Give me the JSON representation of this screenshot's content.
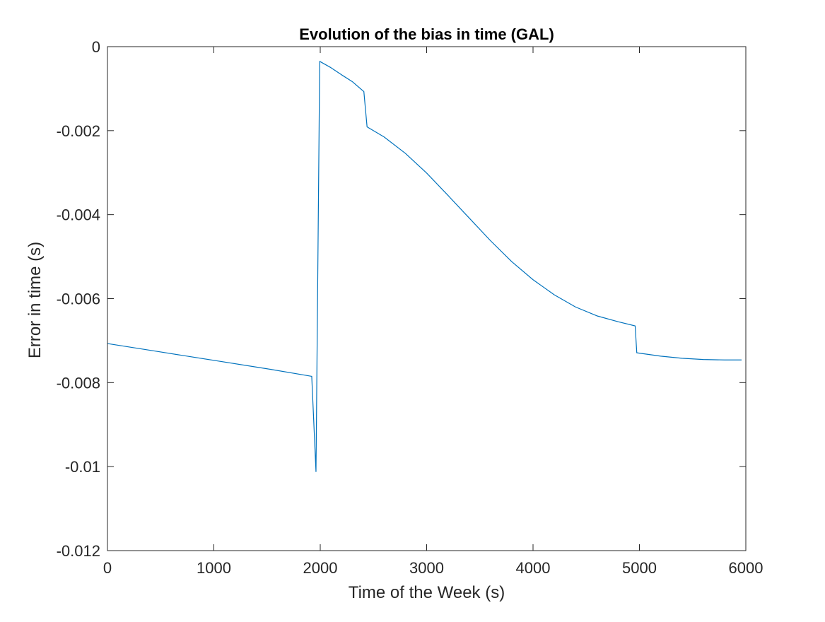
{
  "chart_data": {
    "type": "line",
    "title": "Evolution of the bias in time (GAL)",
    "xlabel": "Time of the Week (s)",
    "ylabel": "Error in time (s)",
    "xlim": [
      0,
      6000
    ],
    "ylim": [
      -0.012,
      0
    ],
    "xticks": [
      0,
      1000,
      2000,
      3000,
      4000,
      5000,
      6000
    ],
    "xtick_labels": [
      "0",
      "1000",
      "2000",
      "3000",
      "4000",
      "5000",
      "6000"
    ],
    "yticks": [
      0,
      -0.002,
      -0.004,
      -0.006,
      -0.008,
      -0.01,
      -0.012
    ],
    "ytick_labels": [
      "0",
      "-0.002",
      "-0.004",
      "-0.006",
      "-0.008",
      "-0.01",
      "-0.012"
    ],
    "grid": false,
    "box": true,
    "series": [
      {
        "color": "#0072BD",
        "x": [
          0,
          500,
          1000,
          1500,
          1920,
          1960,
          1995,
          2100,
          2200,
          2300,
          2410,
          2440,
          2600,
          2800,
          3000,
          3200,
          3400,
          3600,
          3800,
          4000,
          4200,
          4400,
          4600,
          4800,
          4960,
          4975,
          5200,
          5400,
          5600,
          5800,
          5960
        ],
        "y": [
          -0.00707,
          -0.00727,
          -0.00747,
          -0.00767,
          -0.00785,
          -0.01012,
          -0.00035,
          -0.0005,
          -0.00067,
          -0.00083,
          -0.00107,
          -0.00191,
          -0.00215,
          -0.00254,
          -0.00301,
          -0.00354,
          -0.00408,
          -0.00462,
          -0.00512,
          -0.00555,
          -0.00591,
          -0.0062,
          -0.00641,
          -0.00655,
          -0.00665,
          -0.00729,
          -0.00737,
          -0.00742,
          -0.00745,
          -0.00746,
          -0.00746
        ]
      }
    ]
  }
}
